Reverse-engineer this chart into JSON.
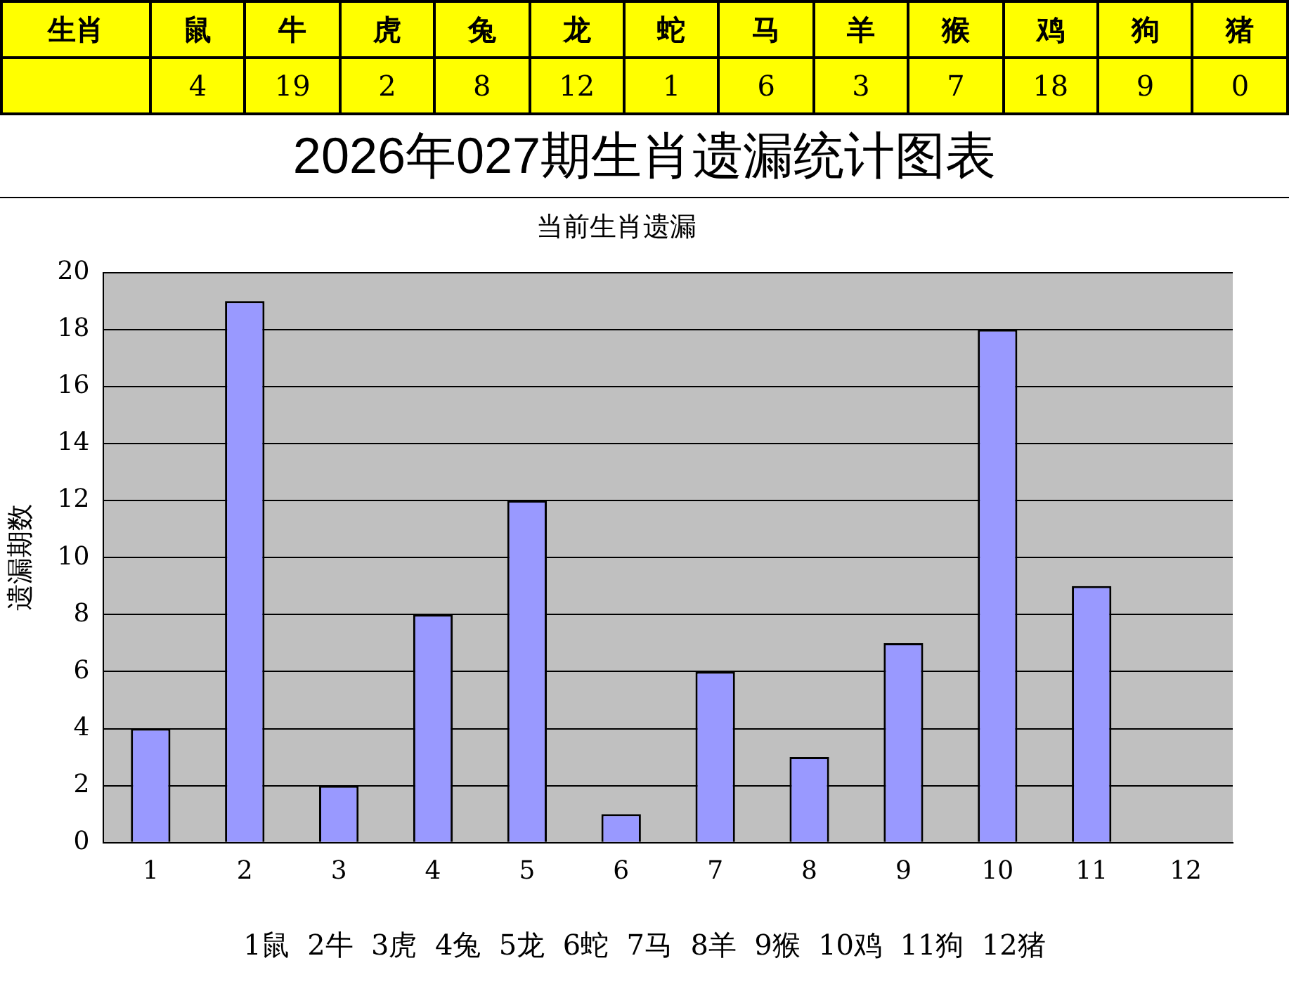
{
  "chart_data": [
    {
      "type": "other",
      "annotations": [
        "生肖"
      ],
      "categories": [
        "鼠",
        "牛",
        "虎",
        "兔",
        "龙",
        "蛇",
        "马",
        "羊",
        "猴",
        "鸡",
        "狗",
        "猪"
      ],
      "values": [
        4,
        19,
        2,
        8,
        12,
        1,
        6,
        3,
        7,
        18,
        9,
        0
      ],
      "data_labels": true
    },
    {
      "type": "bar",
      "title": "2026年027期生肖遗漏统计图表",
      "subtitle": "当前生肖遗漏",
      "ylabel": "遗漏期数",
      "categories": [
        "1",
        "2",
        "3",
        "4",
        "5",
        "6",
        "7",
        "8",
        "9",
        "10",
        "11",
        "12"
      ],
      "values": [
        4,
        19,
        2,
        8,
        12,
        1,
        6,
        3,
        7,
        18,
        9,
        0
      ],
      "color": "#9999ff",
      "ylim": [
        0,
        20
      ],
      "yticks": [
        0,
        2,
        4,
        6,
        8,
        10,
        12,
        14,
        16,
        18,
        20
      ],
      "grid": "y",
      "annotations": [
        "1鼠  2牛  3虎  4兔  5龙  6蛇  7马  8羊  9猴  10鸡  11狗  12猪"
      ]
    }
  ]
}
